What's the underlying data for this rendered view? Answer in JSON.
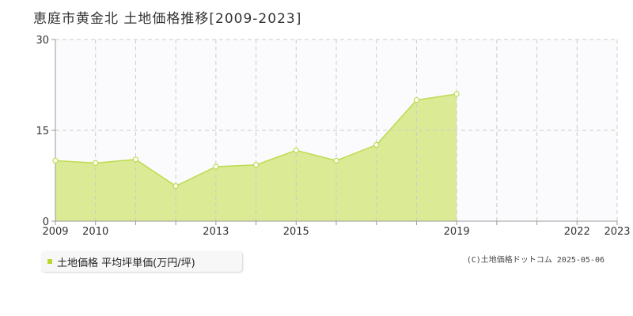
{
  "title": "恵庭市黄金北 土地価格推移[2009-2023]",
  "legend": {
    "label": "土地価格 平均坪単価(万円/坪)"
  },
  "copyright": "(C)土地価格ドットコム 2025-05-06",
  "colors": {
    "fill": "#dbea95",
    "line": "#bcdc50",
    "marker": "#ffffff",
    "legend": "#b8d830",
    "grid": "#cccccc"
  },
  "chart_data": {
    "type": "area",
    "x": [
      2009,
      2010,
      2011,
      2012,
      2013,
      2014,
      2015,
      2016,
      2017,
      2018,
      2019,
      2020,
      2021,
      2022,
      2023
    ],
    "x_tick_labels": [
      "2009",
      "2010",
      "2013",
      "2015",
      "2019",
      "2022",
      "2023"
    ],
    "x_tick_labels_at": [
      2009,
      2010,
      2013,
      2015,
      2019,
      2022,
      2023
    ],
    "series": [
      {
        "name": "土地価格 平均坪単価(万円/坪)",
        "points": [
          {
            "x": 2009,
            "y": 10.0
          },
          {
            "x": 2010,
            "y": 9.6
          },
          {
            "x": 2011,
            "y": 10.2
          },
          {
            "x": 2012,
            "y": 5.8
          },
          {
            "x": 2013,
            "y": 9.0
          },
          {
            "x": 2014,
            "y": 9.3
          },
          {
            "x": 2015,
            "y": 11.7
          },
          {
            "x": 2016,
            "y": 10.0
          },
          {
            "x": 2017,
            "y": 12.6
          },
          {
            "x": 2018,
            "y": 20.0
          },
          {
            "x": 2019,
            "y": 21.0
          }
        ]
      }
    ],
    "ylim": [
      0,
      30
    ],
    "y_ticks": [
      0,
      15,
      30
    ],
    "grid": true
  }
}
